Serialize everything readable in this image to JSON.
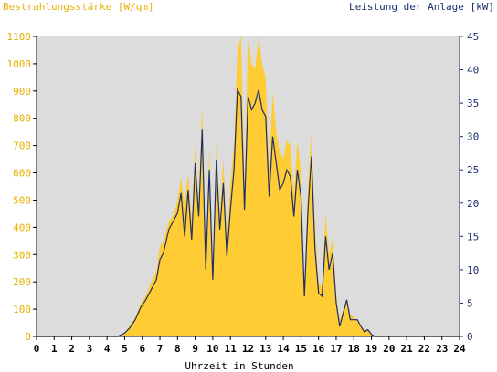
{
  "chart_data": {
    "type": "area",
    "left_label": "Bestrahlungsstärke [W/qm]",
    "right_label": "Leistung der Anlage [kW]",
    "xlabel": "Uhrzeit in Stunden",
    "colors": {
      "irradiance": "#ffcc33",
      "power": "#1a2d6e",
      "plot_bg": "#dcdcdc",
      "left_axis": "#ffcc33",
      "right_axis": "#1a2d6e"
    },
    "x_ticks": [
      "0",
      "1",
      "2",
      "3",
      "4",
      "5",
      "6",
      "7",
      "8",
      "9",
      "10",
      "11",
      "12",
      "13",
      "14",
      "15",
      "16",
      "17",
      "18",
      "19",
      "20",
      "21",
      "22",
      "23",
      "24"
    ],
    "y_left_ticks": [
      "0",
      "100",
      "200",
      "300",
      "400",
      "500",
      "600",
      "700",
      "800",
      "900",
      "1000",
      "1100"
    ],
    "y_right_ticks": [
      "0",
      "5",
      "10",
      "15",
      "20",
      "25",
      "30",
      "35",
      "40",
      "45"
    ],
    "xlim": [
      0,
      24
    ],
    "ylim_left": [
      0,
      1100
    ],
    "ylim_right": [
      0,
      45
    ],
    "grid": false,
    "series": [
      {
        "key": "irradiance",
        "x": [
          0,
          4.6,
          5.0,
          5.3,
          5.6,
          5.9,
          6.2,
          6.5,
          6.8,
          7.0,
          7.2,
          7.5,
          7.8,
          8.0,
          8.2,
          8.4,
          8.6,
          8.8,
          9.0,
          9.2,
          9.4,
          9.6,
          9.8,
          10.0,
          10.2,
          10.4,
          10.6,
          10.8,
          11.0,
          11.2,
          11.4,
          11.6,
          11.8,
          12.0,
          12.2,
          12.4,
          12.6,
          12.8,
          13.0,
          13.2,
          13.4,
          13.6,
          13.8,
          14.0,
          14.2,
          14.4,
          14.6,
          14.8,
          15.0,
          15.2,
          15.4,
          15.6,
          15.8,
          16.0,
          16.2,
          16.4,
          16.6,
          16.8,
          17.0,
          17.2,
          17.4,
          17.6,
          17.8,
          18.0,
          18.2,
          18.4,
          18.6,
          18.8,
          19.0,
          19.2,
          19.4,
          19.6,
          19.8,
          20.0,
          20.3,
          20.6,
          24
        ],
        "y": [
          0,
          0,
          15,
          40,
          70,
          120,
          150,
          200,
          240,
          330,
          350,
          420,
          450,
          500,
          580,
          480,
          600,
          420,
          700,
          500,
          850,
          300,
          680,
          250,
          720,
          450,
          650,
          350,
          560,
          700,
          1050,
          1100,
          550,
          1100,
          1000,
          980,
          1100,
          1000,
          950,
          600,
          900,
          750,
          680,
          650,
          720,
          700,
          520,
          720,
          600,
          180,
          550,
          750,
          400,
          200,
          180,
          450,
          300,
          360,
          150,
          60,
          100,
          140,
          80,
          70,
          60,
          40,
          20,
          30,
          10,
          0,
          0,
          0,
          0,
          0,
          0,
          0,
          0
        ]
      },
      {
        "key": "power",
        "x": [
          0,
          4.6,
          5.0,
          5.3,
          5.6,
          5.9,
          6.2,
          6.5,
          6.8,
          7.0,
          7.2,
          7.5,
          7.8,
          8.0,
          8.2,
          8.4,
          8.6,
          8.8,
          9.0,
          9.2,
          9.4,
          9.6,
          9.8,
          10.0,
          10.2,
          10.4,
          10.6,
          10.8,
          11.0,
          11.2,
          11.4,
          11.6,
          11.8,
          12.0,
          12.2,
          12.4,
          12.6,
          12.8,
          13.0,
          13.2,
          13.4,
          13.6,
          13.8,
          14.0,
          14.2,
          14.4,
          14.6,
          14.8,
          15.0,
          15.2,
          15.4,
          15.6,
          15.8,
          16.0,
          16.2,
          16.4,
          16.6,
          16.8,
          17.0,
          17.2,
          17.4,
          17.6,
          17.8,
          18.0,
          18.2,
          18.4,
          18.6,
          18.8,
          19.0,
          19.2,
          19.4,
          19.6,
          19.8,
          20.0,
          20.3,
          20.6,
          24
        ],
        "y": [
          0,
          0,
          0.5,
          1.3,
          2.5,
          4.3,
          5.5,
          7.0,
          8.5,
          11.5,
          12.5,
          16.0,
          17.5,
          18.5,
          21.5,
          15.0,
          22.0,
          14.5,
          26.0,
          18.0,
          31.0,
          10.0,
          25.0,
          8.5,
          26.5,
          16.0,
          23.0,
          12.0,
          19.0,
          25.0,
          37.0,
          36.0,
          19.0,
          36.0,
          34.0,
          35.0,
          37.0,
          34.0,
          33.0,
          21.0,
          30.0,
          26.0,
          22.0,
          23.0,
          25.0,
          24.0,
          18.0,
          25.0,
          21.0,
          6.0,
          19.0,
          27.0,
          13.0,
          6.5,
          6.0,
          15.0,
          10.0,
          12.5,
          5.0,
          1.5,
          3.5,
          5.5,
          2.5,
          2.5,
          2.5,
          1.5,
          0.7,
          1.0,
          0.3,
          0,
          0,
          0,
          0,
          0,
          0,
          0,
          0
        ]
      }
    ]
  }
}
